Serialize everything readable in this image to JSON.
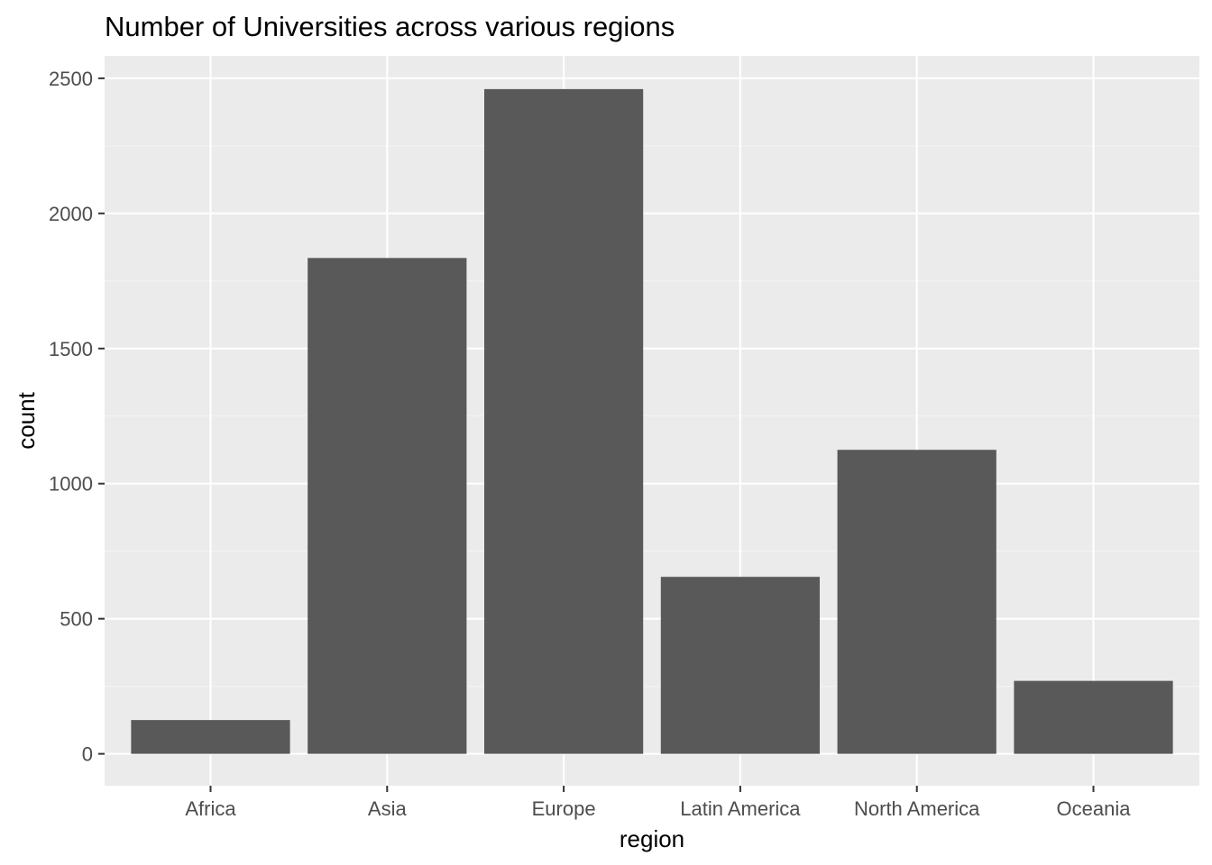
{
  "chart_data": {
    "type": "bar",
    "title": "Number of Universities across various regions",
    "xlabel": "region",
    "ylabel": "count",
    "categories": [
      "Africa",
      "Asia",
      "Europe",
      "Latin America",
      "North America",
      "Oceania"
    ],
    "values": [
      125,
      1835,
      2460,
      655,
      1125,
      270
    ],
    "ylim": [
      -118,
      2583
    ],
    "yticks": [
      0,
      500,
      1000,
      1500,
      2000,
      2500
    ],
    "grid": true,
    "legend": "none"
  },
  "colors": {
    "bar": "#595959",
    "panel_background": "#ebebeb",
    "grid_major": "#ffffff",
    "grid_minor": "#f4f4f4",
    "tick": "#333333",
    "tick_label": "#4d4d4d",
    "text": "#000000"
  }
}
